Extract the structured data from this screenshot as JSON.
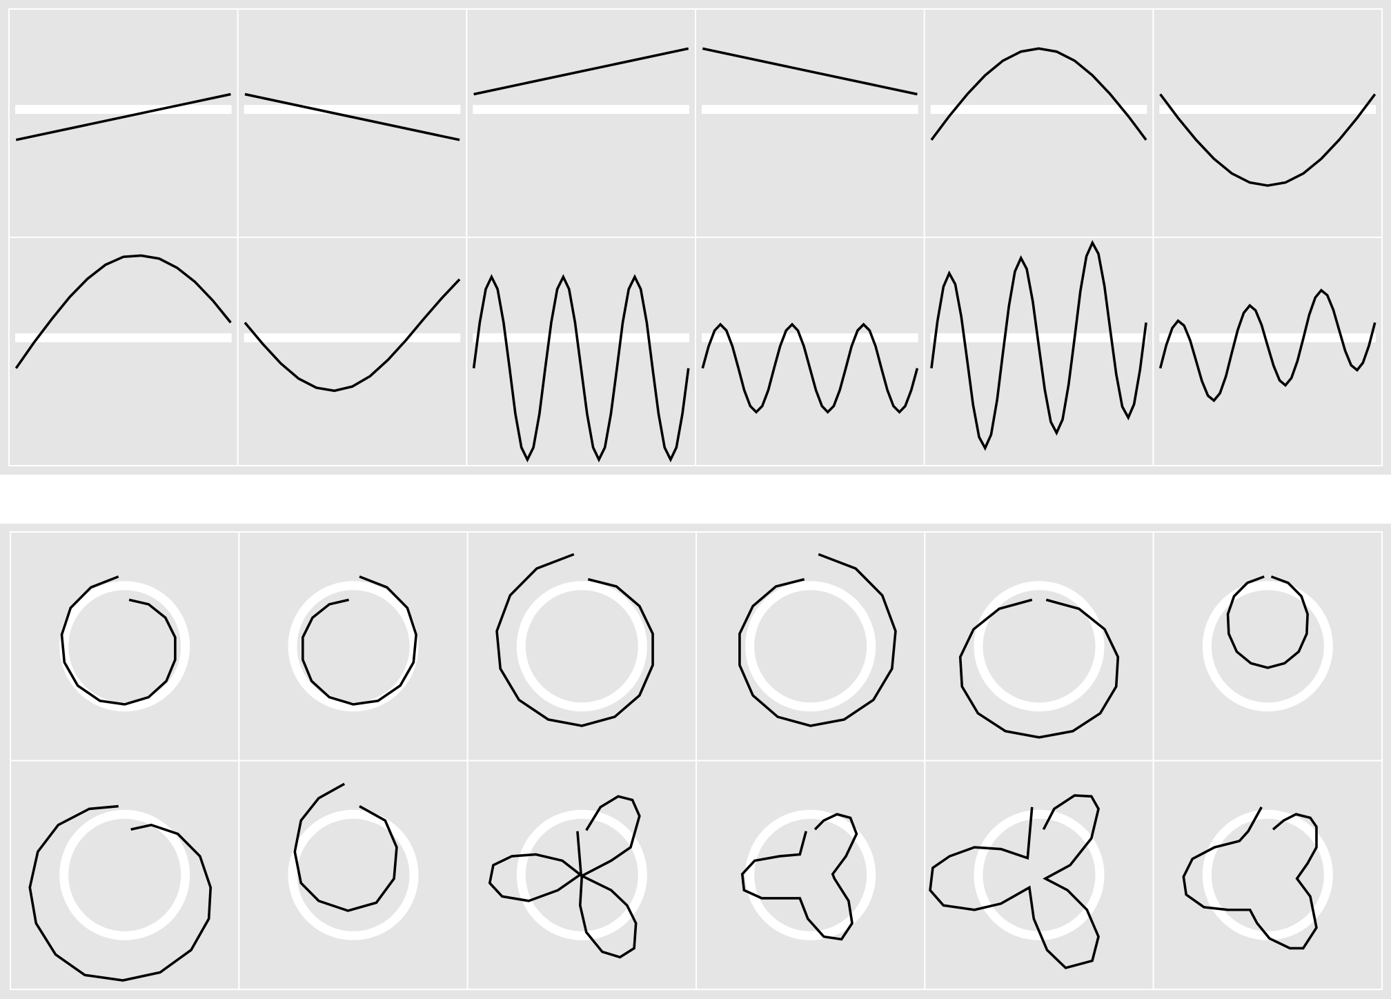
{
  "chart_data": [
    {
      "type": "line",
      "color": "#000000",
      "xlim": [
        -0.033,
        1.033
      ],
      "ylim": [
        -2.1,
        1.65
      ],
      "reference": {
        "y": 0
      },
      "panels": [
        {
          "x": [
            0,
            1
          ],
          "y": [
            -0.5,
            0.25
          ]
        },
        {
          "x": [
            0,
            1
          ],
          "y": [
            0.25,
            -0.5
          ]
        },
        {
          "x": [
            0,
            1
          ],
          "y": [
            0.25,
            1
          ]
        },
        {
          "x": [
            0,
            1
          ],
          "y": [
            1,
            0.25
          ]
        },
        {
          "x": [
            0,
            0.083,
            0.167,
            0.25,
            0.333,
            0.417,
            0.5,
            0.583,
            0.667,
            0.75,
            0.833,
            0.917,
            1
          ],
          "y": [
            -0.5,
            -0.11,
            0.25,
            0.56,
            0.8,
            0.95,
            1,
            0.95,
            0.8,
            0.56,
            0.25,
            -0.11,
            -0.5
          ]
        },
        {
          "x": [
            0,
            0.083,
            0.167,
            0.25,
            0.333,
            0.417,
            0.5,
            0.583,
            0.667,
            0.75,
            0.833,
            0.917,
            1
          ],
          "y": [
            0.25,
            -0.14,
            -0.5,
            -0.81,
            -1.05,
            -1.2,
            -1.25,
            -1.2,
            -1.05,
            -0.81,
            -0.5,
            -0.14,
            0.25
          ]
        },
        {
          "x": [
            0,
            0.083,
            0.167,
            0.25,
            0.333,
            0.417,
            0.5,
            0.583,
            0.667,
            0.75,
            0.833,
            0.917,
            1
          ],
          "y": [
            -0.5,
            -0.08,
            0.31,
            0.67,
            0.97,
            1.2,
            1.33,
            1.35,
            1.3,
            1.15,
            0.92,
            0.61,
            0.25
          ]
        },
        {
          "x": [
            0,
            0.083,
            0.167,
            0.25,
            0.333,
            0.417,
            0.5,
            0.583,
            0.667,
            0.75,
            0.833,
            0.917,
            1
          ],
          "y": [
            0.25,
            -0.1,
            -0.42,
            -0.67,
            -0.82,
            -0.87,
            -0.8,
            -0.63,
            -0.36,
            -0.04,
            0.31,
            0.65,
            0.96
          ]
        },
        {
          "x": [
            0,
            0.028,
            0.056,
            0.083,
            0.111,
            0.139,
            0.167,
            0.194,
            0.222,
            0.25,
            0.278,
            0.306,
            0.333,
            0.361,
            0.389,
            0.417,
            0.444,
            0.472,
            0.5,
            0.528,
            0.556,
            0.583,
            0.611,
            0.639,
            0.667,
            0.694,
            0.722,
            0.75,
            0.778,
            0.806,
            0.833,
            0.861,
            0.889,
            0.917,
            0.944,
            0.972,
            1
          ],
          "y": [
            -0.5,
            0.25,
            0.8,
            1,
            0.8,
            0.25,
            -0.5,
            -1.25,
            -1.8,
            -2,
            -1.8,
            -1.25,
            -0.5,
            0.25,
            0.8,
            1,
            0.8,
            0.25,
            -0.5,
            -1.25,
            -1.8,
            -2,
            -1.8,
            -1.25,
            -0.5,
            0.25,
            0.8,
            1,
            0.8,
            0.25,
            -0.5,
            -1.25,
            -1.8,
            -2,
            -1.8,
            -1.25,
            -0.5
          ]
        },
        {
          "x": [
            0,
            0.028,
            0.056,
            0.083,
            0.111,
            0.139,
            0.167,
            0.194,
            0.222,
            0.25,
            0.278,
            0.306,
            0.333,
            0.361,
            0.389,
            0.417,
            0.444,
            0.472,
            0.5,
            0.528,
            0.556,
            0.583,
            0.611,
            0.639,
            0.667,
            0.694,
            0.722,
            0.75,
            0.778,
            0.806,
            0.833,
            0.861,
            0.889,
            0.917,
            0.944,
            0.972,
            1
          ],
          "y": [
            -0.5,
            -0.14,
            0.12,
            0.22,
            0.12,
            -0.14,
            -0.5,
            -0.86,
            -1.12,
            -1.22,
            -1.12,
            -0.86,
            -0.5,
            -0.14,
            0.12,
            0.22,
            0.12,
            -0.14,
            -0.5,
            -0.86,
            -1.12,
            -1.22,
            -1.12,
            -0.86,
            -0.5,
            -0.14,
            0.12,
            0.22,
            0.12,
            -0.14,
            -0.5,
            -0.86,
            -1.12,
            -1.22,
            -1.12,
            -0.86,
            -0.5
          ]
        },
        {
          "x": [
            0,
            0.028,
            0.056,
            0.083,
            0.111,
            0.139,
            0.167,
            0.194,
            0.222,
            0.25,
            0.278,
            0.306,
            0.333,
            0.361,
            0.389,
            0.417,
            0.444,
            0.472,
            0.5,
            0.528,
            0.556,
            0.583,
            0.611,
            0.639,
            0.667,
            0.694,
            0.722,
            0.75,
            0.778,
            0.806,
            0.833,
            0.861,
            0.889,
            0.917,
            0.944,
            0.972,
            1
          ],
          "y": [
            -0.5,
            0.27,
            0.84,
            1.06,
            0.88,
            0.35,
            -0.38,
            -1.1,
            -1.63,
            -1.81,
            -1.59,
            -1.02,
            -0.25,
            0.52,
            1.09,
            1.31,
            1.13,
            0.6,
            -0.13,
            -0.85,
            -1.38,
            -1.56,
            -1.34,
            -0.77,
            0,
            0.77,
            1.34,
            1.56,
            1.38,
            0.85,
            0.13,
            -0.6,
            -1.13,
            -1.31,
            -1.09,
            -0.52,
            0.25
          ]
        },
        {
          "x": [
            0,
            0.028,
            0.056,
            0.083,
            0.111,
            0.139,
            0.167,
            0.194,
            0.222,
            0.25,
            0.278,
            0.306,
            0.333,
            0.361,
            0.389,
            0.417,
            0.444,
            0.472,
            0.5,
            0.528,
            0.556,
            0.583,
            0.611,
            0.639,
            0.667,
            0.694,
            0.722,
            0.75,
            0.778,
            0.806,
            0.833,
            0.861,
            0.889,
            0.917,
            0.944,
            0.972,
            1
          ],
          "y": [
            -0.5,
            -0.12,
            0.16,
            0.28,
            0.2,
            -0.04,
            -0.38,
            -0.71,
            -0.95,
            -1.03,
            -0.91,
            -0.63,
            -0.25,
            0.13,
            0.41,
            0.53,
            0.45,
            0.21,
            -0.13,
            -0.46,
            -0.7,
            -0.78,
            -0.66,
            -0.38,
            0,
            0.38,
            0.66,
            0.78,
            0.7,
            0.46,
            0.13,
            -0.21,
            -0.45,
            -0.53,
            -0.41,
            -0.13,
            0.25
          ]
        }
      ]
    },
    {
      "type": "path",
      "color": "#000000",
      "xlim": [
        -129,
        129
      ],
      "ylim": [
        -128,
        128
      ],
      "reference": {
        "x": 0,
        "y": 0,
        "r": 68
      },
      "panels": [
        {
          "x": [
            -7,
            -38,
            -61,
            -71,
            -68,
            -53,
            -28,
            0,
            27,
            47,
            57,
            57,
            46,
            27,
            5
          ],
          "y": [
            78,
            66,
            43,
            13,
            -18,
            -44,
            -61,
            -65,
            -57,
            -39,
            -15,
            10,
            32,
            47,
            52
          ]
        },
        {
          "x": [
            7,
            38,
            61,
            71,
            68,
            53,
            28,
            0,
            -27,
            -47,
            -57,
            -57,
            -46,
            -27,
            -5
          ],
          "y": [
            78,
            66,
            43,
            13,
            -18,
            -44,
            -61,
            -65,
            -57,
            -39,
            -15,
            10,
            32,
            47,
            52
          ]
        },
        {
          "x": [
            -9,
            -51,
            -81,
            -96,
            -92,
            -71,
            -38,
            0,
            37,
            65,
            80,
            80,
            65,
            39,
            7
          ],
          "y": [
            103,
            87,
            57,
            17,
            -25,
            -60,
            -82,
            -89,
            -79,
            -55,
            -21,
            14,
            45,
            67,
            75
          ]
        },
        {
          "x": [
            9,
            51,
            81,
            96,
            92,
            71,
            38,
            0,
            -37,
            -65,
            -80,
            -80,
            -65,
            -39,
            -7
          ],
          "y": [
            103,
            87,
            57,
            17,
            -25,
            -60,
            -82,
            -89,
            -79,
            -55,
            -21,
            14,
            45,
            67,
            75
          ]
        },
        {
          "x": [
            -8,
            -45,
            -74,
            -89,
            -87,
            -69,
            -38,
            0,
            38,
            69,
            87,
            89,
            74,
            45,
            8
          ],
          "y": [
            52,
            42,
            19,
            -12,
            -45,
            -75,
            -95,
            -102,
            -95,
            -75,
            -45,
            -12,
            19,
            42,
            52
          ]
        },
        {
          "x": [
            -4,
            -23,
            -38,
            -45,
            -44,
            -35,
            -19,
            0,
            19,
            35,
            44,
            45,
            38,
            23,
            4
          ],
          "y": [
            78,
            71,
            56,
            36,
            14,
            -6,
            -19,
            -24,
            -19,
            -6,
            14,
            36,
            56,
            71,
            78
          ]
        },
        {
          "x": [
            -7,
            -40,
            -75,
            -98,
            -107,
            -100,
            -78,
            -45,
            -2,
            40,
            75,
            95,
            97,
            85,
            60,
            30,
            7
          ],
          "y": [
            77,
            74,
            56,
            26,
            -14,
            -54,
            -89,
            -112,
            -118,
            -109,
            -84,
            -49,
            -14,
            21,
            46,
            56,
            51
          ]
        },
        {
          "x": [
            -10,
            -39,
            -59,
            -66,
            -59,
            -39,
            -6,
            26,
            46,
            49,
            36,
            7
          ],
          "y": [
            102,
            86,
            61,
            26,
            -9,
            -29,
            -40,
            -31,
            -4,
            31,
            61,
            77
          ]
        },
        {
          "x": [
            -5,
            -1,
            -27,
            -60,
            -90,
            -104,
            -100,
            -79,
            -52,
            -22,
            0,
            -2,
            5,
            23,
            43,
            59,
            61,
            51,
            33,
            0,
            33,
            55,
            65,
            57,
            41,
            21,
            5
          ],
          "y": [
            49,
            1,
            -17,
            -29,
            -24,
            -9,
            11,
            21,
            23,
            16,
            -1,
            -34,
            -64,
            -86,
            -92,
            -82,
            -54,
            -34,
            -17,
            -1,
            16,
            31,
            66,
            84,
            88,
            76,
            50
          ]
        },
        {
          "x": [
            -5,
            -12,
            -35,
            -63,
            -77,
            -75,
            -55,
            -30,
            -12,
            -3,
            15,
            35,
            47,
            43,
            27,
            25,
            40,
            52,
            45,
            30,
            15,
            5
          ],
          "y": [
            49,
            23,
            21,
            16,
            1,
            -17,
            -26,
            -26,
            -26,
            -49,
            -69,
            -72,
            -54,
            -29,
            -4,
            1,
            21,
            46,
            64,
            68,
            61,
            51
          ]
        },
        {
          "x": [
            -8,
            -13,
            -43,
            -73,
            -101,
            -120,
            -123,
            -108,
            -73,
            -43,
            -11,
            -6,
            9,
            30,
            60,
            67,
            54,
            32,
            7,
            35,
            59,
            67,
            59,
            40,
            17,
            5
          ],
          "y": [
            76,
            19,
            29,
            31,
            21,
            8,
            -17,
            -34,
            -39,
            -32,
            -14,
            -49,
            -84,
            -104,
            -96,
            -69,
            -39,
            -17,
            -4,
            11,
            41,
            74,
            88,
            89,
            74,
            51
          ]
        },
        {
          "x": [
            -7,
            -22,
            -32,
            -60,
            -85,
            -95,
            -92,
            -72,
            -45,
            -20,
            -12,
            2,
            25,
            40,
            55,
            48,
            33,
            45,
            55,
            55,
            48,
            32,
            18,
            6
          ],
          "y": [
            76,
            49,
            38,
            31,
            18,
            -2,
            -22,
            -36,
            -39,
            -39,
            -54,
            -71,
            -82,
            -82,
            -59,
            -24,
            -4,
            13,
            31,
            54,
            64,
            68,
            61,
            51
          ]
        }
      ]
    }
  ]
}
